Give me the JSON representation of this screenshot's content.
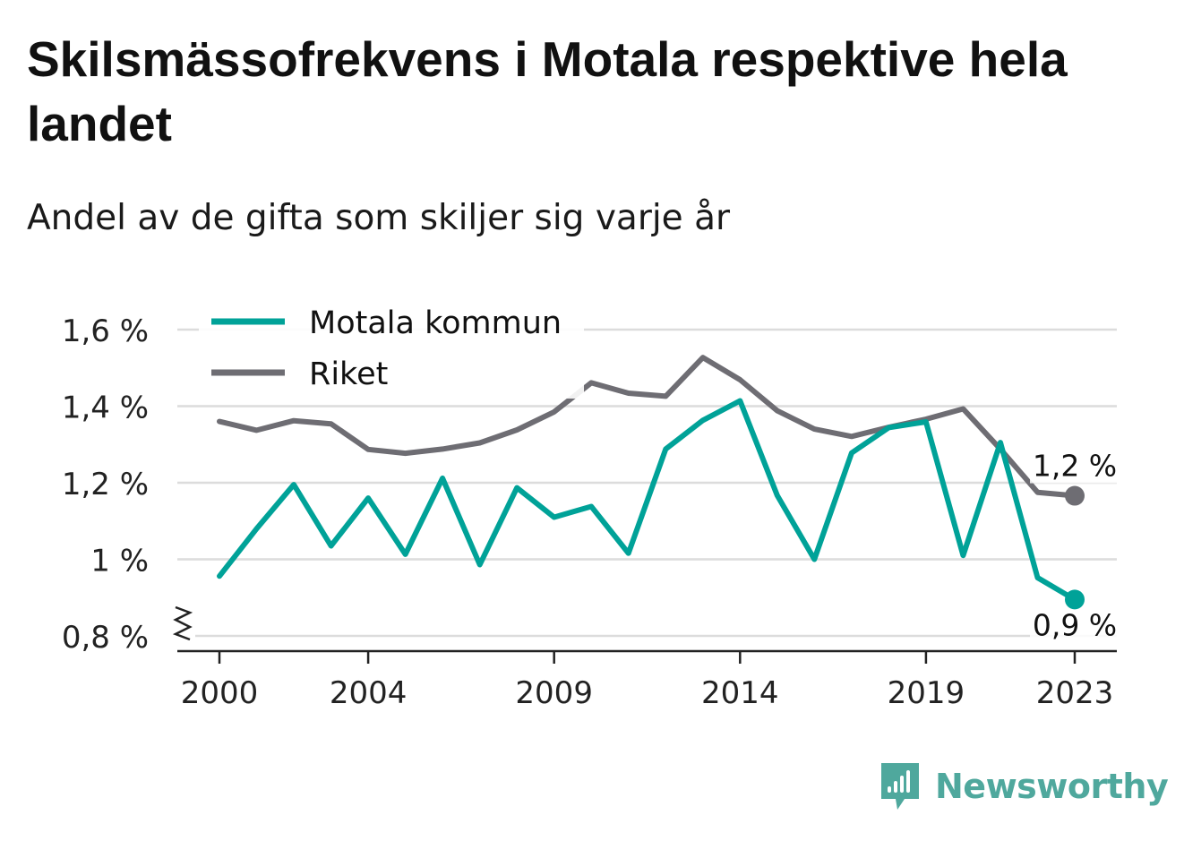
{
  "title": "Skilsmässofrekvens i Motala respektive hela landet",
  "subtitle": "Andel av de gifta som skiljer sig varje år",
  "brand": "Newsworthy",
  "colors": {
    "motala": "#00a298",
    "riket": "#6e6d73",
    "grid": "#dcdcdc",
    "text": "#222222",
    "brand": "#4fa89d"
  },
  "chart_data": {
    "type": "line",
    "x": [
      2000,
      2001,
      2002,
      2003,
      2004,
      2005,
      2006,
      2007,
      2008,
      2009,
      2010,
      2011,
      2012,
      2013,
      2014,
      2015,
      2016,
      2017,
      2018,
      2019,
      2020,
      2021,
      2022,
      2023
    ],
    "x_ticks": [
      2000,
      2004,
      2009,
      2014,
      2019,
      2023
    ],
    "x_tick_labels": [
      "2000",
      "2004",
      "2009",
      "2014",
      "2019",
      "2023"
    ],
    "ylim": [
      0.8,
      1.6
    ],
    "y_ticks": [
      0.8,
      1.0,
      1.2,
      1.4,
      1.6
    ],
    "y_tick_labels": [
      "0,8 %",
      "1 %",
      "1,2 %",
      "1,4 %",
      "1,6 %"
    ],
    "axis_break": true,
    "grid": true,
    "legend_position": "top-left",
    "series": [
      {
        "name": "Motala kommun",
        "color": "#00a298",
        "values": [
          0.956,
          1.08,
          1.195,
          1.035,
          1.16,
          1.013,
          1.212,
          0.986,
          1.187,
          1.11,
          1.138,
          1.016,
          1.288,
          1.363,
          1.414,
          1.167,
          1.0,
          1.278,
          1.344,
          1.359,
          1.01,
          1.305,
          0.952,
          0.895
        ],
        "end_label": "0,9 %"
      },
      {
        "name": "Riket",
        "color": "#6e6d73",
        "values": [
          1.36,
          1.337,
          1.362,
          1.354,
          1.287,
          1.277,
          1.288,
          1.304,
          1.338,
          1.385,
          1.461,
          1.434,
          1.426,
          1.527,
          1.469,
          1.388,
          1.34,
          1.321,
          1.345,
          1.366,
          1.393,
          1.288,
          1.175,
          1.166
        ],
        "end_label": "1,2 %"
      }
    ]
  }
}
